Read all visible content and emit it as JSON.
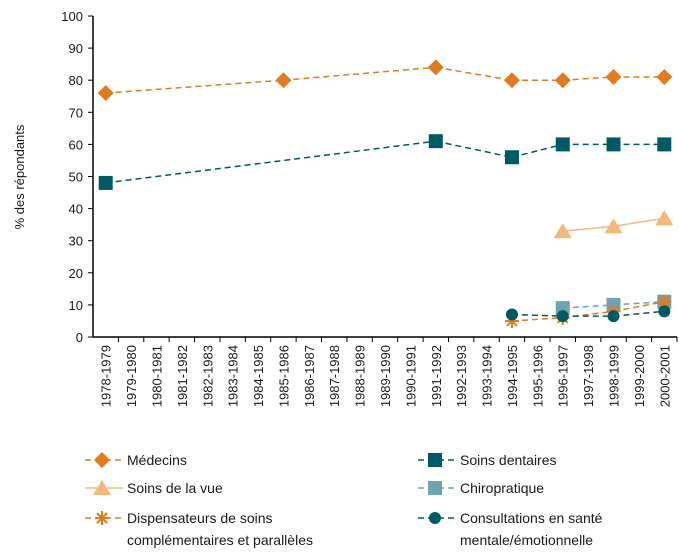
{
  "chart_data": {
    "type": "line",
    "y_label": "% des répondants",
    "categories": [
      "1978-1979",
      "1979-1980",
      "1980-1981",
      "1981-1982",
      "1982-1983",
      "1983-1984",
      "1984-1985",
      "1985-1986",
      "1986-1987",
      "1987-1988",
      "1988-1989",
      "1989-1990",
      "1990-1991",
      "1991-1992",
      "1992-1993",
      "1993-1994",
      "1994-1995",
      "1995-1996",
      "1996-1997",
      "1997-1998",
      "1998-1999",
      "1999-2000",
      "2000-2001"
    ],
    "ylim": [
      0,
      100
    ],
    "yticks": [
      0,
      10,
      20,
      30,
      40,
      50,
      60,
      70,
      80,
      90,
      100
    ],
    "grid": false,
    "series": [
      {
        "name": "Médecins",
        "color": "#e07b1f",
        "marker": "diamond",
        "dashed": true,
        "values": [
          76,
          null,
          null,
          null,
          null,
          null,
          null,
          80,
          null,
          null,
          null,
          null,
          null,
          84,
          null,
          null,
          80,
          null,
          80,
          null,
          81,
          null,
          81
        ]
      },
      {
        "name": "Soins dentaires",
        "color": "#005a63",
        "marker": "square",
        "dashed": true,
        "values": [
          48,
          null,
          null,
          null,
          null,
          null,
          null,
          null,
          null,
          null,
          null,
          null,
          null,
          61,
          null,
          null,
          56,
          null,
          60,
          null,
          60,
          null,
          60
        ]
      },
      {
        "name": "Soins de la vue",
        "color": "#f4b77d",
        "marker": "triangle",
        "dashed": false,
        "values": [
          null,
          null,
          null,
          null,
          null,
          null,
          null,
          null,
          null,
          null,
          null,
          null,
          null,
          null,
          null,
          null,
          null,
          null,
          33,
          null,
          34.5,
          null,
          37
        ]
      },
      {
        "name": "Chiropratique",
        "color": "#6fa3b0",
        "marker": "square",
        "dashed": true,
        "values": [
          null,
          null,
          null,
          null,
          null,
          null,
          null,
          null,
          null,
          null,
          null,
          null,
          null,
          null,
          null,
          null,
          null,
          null,
          9,
          null,
          10,
          null,
          11
        ]
      },
      {
        "name": "Dispensateurs de soins complémentaires et parallèles",
        "color": "#e07b1f",
        "marker": "asterisk",
        "dashed": true,
        "values": [
          null,
          null,
          null,
          null,
          null,
          null,
          null,
          null,
          null,
          null,
          null,
          null,
          null,
          null,
          null,
          null,
          5,
          null,
          6,
          null,
          8,
          null,
          11
        ]
      },
      {
        "name": "Consultations en santé mentale/émotionnelle",
        "color": "#005a63",
        "marker": "circle",
        "dashed": true,
        "values": [
          null,
          null,
          null,
          null,
          null,
          null,
          null,
          null,
          null,
          null,
          null,
          null,
          null,
          null,
          null,
          null,
          7,
          null,
          6.5,
          null,
          6.5,
          null,
          8
        ]
      }
    ]
  }
}
